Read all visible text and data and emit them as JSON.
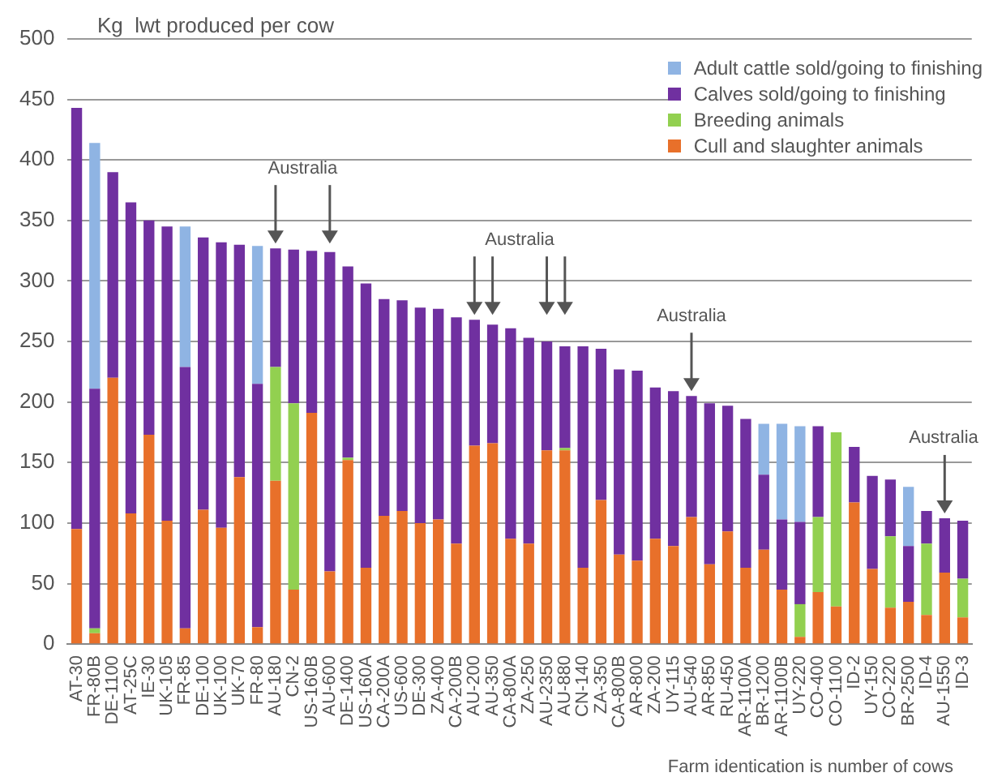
{
  "chart_data": {
    "type": "bar",
    "stacked": true,
    "ylabel": "Kg  lwt produced per cow",
    "categories": [
      "AT-30",
      "FR-80B",
      "DE-1100",
      "AT-25C",
      "IE-30",
      "UK-105",
      "FR-85",
      "DE-100",
      "UK-100",
      "UK-70",
      "FR-80",
      "AU-180",
      "CN-2",
      "US-160B",
      "AU-600",
      "DE-1400",
      "US-160A",
      "CA-200A",
      "US-600",
      "DE-300",
      "ZA-400",
      "CA-200B",
      "AU-200",
      "AU-350",
      "CA-800A",
      "ZA-250",
      "AU-2350",
      "AU-880",
      "CN-140",
      "ZA-350",
      "CA-800B",
      "AR-800",
      "ZA-200",
      "UY-115",
      "AU-540",
      "AR-850",
      "RU-450",
      "AR-1100A",
      "BR-1200",
      "AR-1100B",
      "UY-220",
      "CO-400",
      "CO-1100",
      "ID-2",
      "UY-150",
      "CO-220",
      "BR-2500",
      "ID-4",
      "AU-1550",
      "ID-3"
    ],
    "series": [
      {
        "name": "Cull and slaughter animals",
        "color": "#e8702a",
        "values": [
          95,
          9,
          220,
          108,
          173,
          102,
          13,
          111,
          96,
          138,
          14,
          135,
          45,
          191,
          60,
          152,
          63,
          106,
          110,
          100,
          103,
          83,
          164,
          166,
          87,
          83,
          160,
          160,
          63,
          119,
          74,
          69,
          87,
          81,
          105,
          66,
          93,
          63,
          78,
          45,
          6,
          43,
          31,
          117,
          62,
          30,
          35,
          24,
          59,
          22
        ]
      },
      {
        "name": "Breeding animals",
        "color": "#92d050",
        "values": [
          0,
          4,
          0,
          0,
          0,
          0,
          0,
          0,
          0,
          0,
          0,
          94,
          154,
          0,
          0,
          2,
          0,
          0,
          0,
          0,
          0,
          0,
          0,
          0,
          0,
          0,
          0,
          2,
          0,
          0,
          0,
          0,
          0,
          0,
          0,
          0,
          0,
          0,
          0,
          0,
          27,
          62,
          144,
          0,
          0,
          59,
          0,
          59,
          0,
          32
        ]
      },
      {
        "name": "Calves sold/going to finishing",
        "color": "#7030a0",
        "values": [
          348,
          198,
          170,
          257,
          177,
          243,
          216,
          225,
          236,
          192,
          201,
          98,
          127,
          134,
          264,
          158,
          235,
          179,
          174,
          178,
          174,
          187,
          104,
          98,
          174,
          170,
          90,
          84,
          183,
          125,
          153,
          157,
          125,
          128,
          100,
          133,
          104,
          123,
          62,
          58,
          68,
          75,
          0,
          46,
          77,
          47,
          46,
          27,
          45,
          48
        ]
      },
      {
        "name": "Adult cattle sold/going to finishing",
        "color": "#8fb4e3",
        "values": [
          0,
          203,
          0,
          0,
          0,
          0,
          116,
          0,
          0,
          0,
          114,
          0,
          0,
          0,
          0,
          0,
          0,
          0,
          0,
          0,
          0,
          0,
          0,
          0,
          0,
          0,
          0,
          0,
          0,
          0,
          0,
          0,
          0,
          0,
          0,
          0,
          0,
          0,
          42,
          79,
          79,
          0,
          0,
          0,
          0,
          0,
          49,
          0,
          0,
          0
        ]
      }
    ],
    "ylim": [
      0,
      500
    ],
    "yticks": [
      0,
      50,
      100,
      150,
      200,
      250,
      300,
      350,
      400,
      450,
      500
    ],
    "grid": "y",
    "legend": "top right",
    "annotations": [
      "Australia",
      "Australia",
      "Australia",
      "Australia",
      "Farm identication is number of cows"
    ]
  }
}
